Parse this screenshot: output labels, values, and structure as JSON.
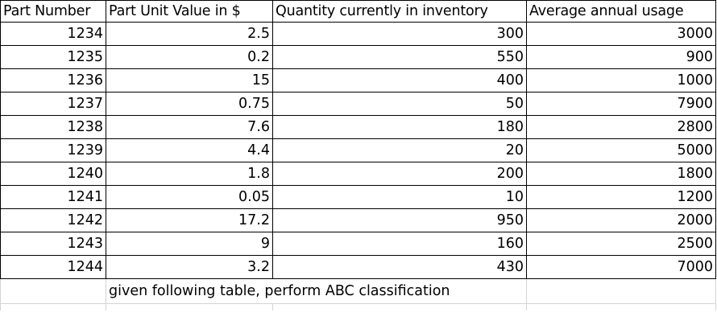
{
  "table": {
    "headers": [
      "Part Number",
      "Part Unit Value in $",
      "Quantity currently in inventory",
      "Average annual usage"
    ],
    "rows": [
      [
        "1234",
        "2.5",
        "300",
        "3000"
      ],
      [
        "1235",
        "0.2",
        "550",
        "900"
      ],
      [
        "1236",
        "15",
        "400",
        "1000"
      ],
      [
        "1237",
        "0.75",
        "50",
        "7900"
      ],
      [
        "1238",
        "7.6",
        "180",
        "2800"
      ],
      [
        "1239",
        "4.4",
        "20",
        "5000"
      ],
      [
        "1240",
        "1.8",
        "200",
        "1800"
      ],
      [
        "1241",
        "0.05",
        "10",
        "1200"
      ],
      [
        "1242",
        "17.2",
        "950",
        "2000"
      ],
      [
        "1243",
        "9",
        "160",
        "2500"
      ],
      [
        "1244",
        "3.2",
        "430",
        "7000"
      ]
    ]
  },
  "note": "given following table, perform ABC classification"
}
